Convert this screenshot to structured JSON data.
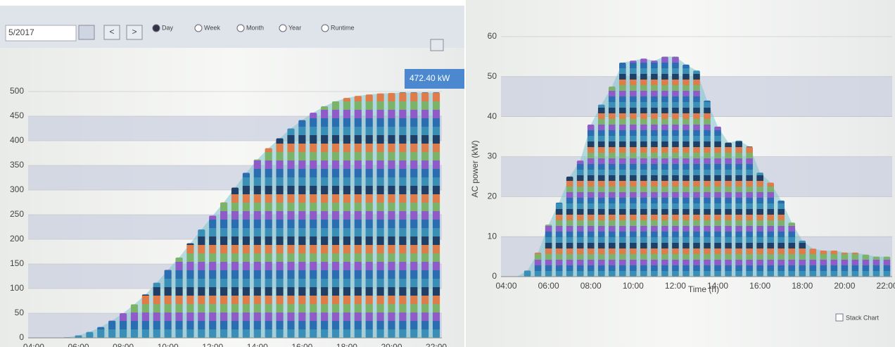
{
  "toolbar": {
    "date": "5/2017",
    "prev": "<",
    "next": ">",
    "views": [
      "Day",
      "Week",
      "Month",
      "Year",
      "Runtime"
    ]
  },
  "stack_chart": "Stack Chart",
  "chart_data": [
    {
      "type": "bar",
      "annotation": "472.40 kW",
      "categories": [
        "04:00",
        null,
        null,
        null,
        "06:00",
        null,
        null,
        null,
        "08:00",
        null,
        null,
        null,
        "10:00",
        null,
        null,
        null,
        "12:00",
        null,
        null,
        null,
        "14:00",
        null,
        null,
        null,
        "16:00",
        null,
        null,
        null,
        "18:00",
        null,
        null,
        null,
        "20:00",
        null,
        null,
        null,
        "22:00"
      ],
      "values": [
        0,
        0,
        0,
        1,
        5,
        12,
        22,
        35,
        50,
        68,
        88,
        112,
        138,
        163,
        192,
        220,
        248,
        275,
        305,
        335,
        362,
        385,
        405,
        425,
        442,
        457,
        470,
        480,
        487,
        491,
        494,
        496,
        497,
        498,
        498,
        498,
        498
      ],
      "ylim": [
        0,
        500
      ],
      "yticks": [
        0,
        50,
        100,
        150,
        200,
        250,
        300,
        350,
        400,
        450,
        500
      ],
      "grid": true
    },
    {
      "type": "bar",
      "x_label": "Time (h)",
      "y_label": "AC power (kW)",
      "categories": [
        "04:00",
        null,
        null,
        null,
        "06:00",
        null,
        null,
        null,
        "08:00",
        null,
        null,
        null,
        "10:00",
        null,
        null,
        null,
        "12:00",
        null,
        null,
        null,
        "14:00",
        null,
        null,
        null,
        "16:00",
        null,
        null,
        null,
        "18:00",
        null,
        null,
        null,
        "20:00",
        null,
        null,
        null,
        "22:00"
      ],
      "values": [
        0,
        0,
        1.5,
        6,
        13,
        18.5,
        25,
        29,
        38,
        43,
        47.5,
        53.5,
        54,
        54.5,
        54,
        55,
        55,
        53,
        51.5,
        44,
        37.5,
        33.5,
        34,
        32.5,
        26,
        23.5,
        19,
        13.5,
        9,
        7,
        6.5,
        6.5,
        6,
        6,
        5.5,
        5,
        5
      ],
      "ylim": [
        0,
        60
      ],
      "yticks": [
        0,
        10,
        20,
        30,
        40,
        50,
        60
      ],
      "grid": true
    }
  ]
}
